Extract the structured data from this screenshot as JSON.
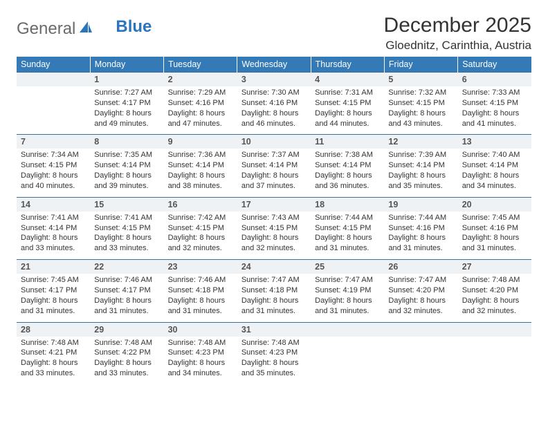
{
  "logo": {
    "part1": "General",
    "part2": "Blue"
  },
  "header": {
    "month_title": "December 2025",
    "location": "Gloednitz, Carinthia, Austria"
  },
  "style": {
    "header_bg": "#337ab7",
    "header_text": "#ffffff",
    "daynum_bg": "#eef2f5",
    "daynum_border_top": "#3a6fa0",
    "body_text": "#333333",
    "logo_gray": "#6a6a6a",
    "logo_blue": "#2a75bb"
  },
  "weekdays": [
    "Sunday",
    "Monday",
    "Tuesday",
    "Wednesday",
    "Thursday",
    "Friday",
    "Saturday"
  ],
  "weeks": [
    {
      "nums": [
        "",
        "1",
        "2",
        "3",
        "4",
        "5",
        "6"
      ],
      "data": [
        null,
        {
          "sunrise": "7:27 AM",
          "sunset": "4:17 PM",
          "daylight": "8 hours and 49 minutes."
        },
        {
          "sunrise": "7:29 AM",
          "sunset": "4:16 PM",
          "daylight": "8 hours and 47 minutes."
        },
        {
          "sunrise": "7:30 AM",
          "sunset": "4:16 PM",
          "daylight": "8 hours and 46 minutes."
        },
        {
          "sunrise": "7:31 AM",
          "sunset": "4:15 PM",
          "daylight": "8 hours and 44 minutes."
        },
        {
          "sunrise": "7:32 AM",
          "sunset": "4:15 PM",
          "daylight": "8 hours and 43 minutes."
        },
        {
          "sunrise": "7:33 AM",
          "sunset": "4:15 PM",
          "daylight": "8 hours and 41 minutes."
        }
      ]
    },
    {
      "nums": [
        "7",
        "8",
        "9",
        "10",
        "11",
        "12",
        "13"
      ],
      "data": [
        {
          "sunrise": "7:34 AM",
          "sunset": "4:15 PM",
          "daylight": "8 hours and 40 minutes."
        },
        {
          "sunrise": "7:35 AM",
          "sunset": "4:14 PM",
          "daylight": "8 hours and 39 minutes."
        },
        {
          "sunrise": "7:36 AM",
          "sunset": "4:14 PM",
          "daylight": "8 hours and 38 minutes."
        },
        {
          "sunrise": "7:37 AM",
          "sunset": "4:14 PM",
          "daylight": "8 hours and 37 minutes."
        },
        {
          "sunrise": "7:38 AM",
          "sunset": "4:14 PM",
          "daylight": "8 hours and 36 minutes."
        },
        {
          "sunrise": "7:39 AM",
          "sunset": "4:14 PM",
          "daylight": "8 hours and 35 minutes."
        },
        {
          "sunrise": "7:40 AM",
          "sunset": "4:14 PM",
          "daylight": "8 hours and 34 minutes."
        }
      ]
    },
    {
      "nums": [
        "14",
        "15",
        "16",
        "17",
        "18",
        "19",
        "20"
      ],
      "data": [
        {
          "sunrise": "7:41 AM",
          "sunset": "4:14 PM",
          "daylight": "8 hours and 33 minutes."
        },
        {
          "sunrise": "7:41 AM",
          "sunset": "4:15 PM",
          "daylight": "8 hours and 33 minutes."
        },
        {
          "sunrise": "7:42 AM",
          "sunset": "4:15 PM",
          "daylight": "8 hours and 32 minutes."
        },
        {
          "sunrise": "7:43 AM",
          "sunset": "4:15 PM",
          "daylight": "8 hours and 32 minutes."
        },
        {
          "sunrise": "7:44 AM",
          "sunset": "4:15 PM",
          "daylight": "8 hours and 31 minutes."
        },
        {
          "sunrise": "7:44 AM",
          "sunset": "4:16 PM",
          "daylight": "8 hours and 31 minutes."
        },
        {
          "sunrise": "7:45 AM",
          "sunset": "4:16 PM",
          "daylight": "8 hours and 31 minutes."
        }
      ]
    },
    {
      "nums": [
        "21",
        "22",
        "23",
        "24",
        "25",
        "26",
        "27"
      ],
      "data": [
        {
          "sunrise": "7:45 AM",
          "sunset": "4:17 PM",
          "daylight": "8 hours and 31 minutes."
        },
        {
          "sunrise": "7:46 AM",
          "sunset": "4:17 PM",
          "daylight": "8 hours and 31 minutes."
        },
        {
          "sunrise": "7:46 AM",
          "sunset": "4:18 PM",
          "daylight": "8 hours and 31 minutes."
        },
        {
          "sunrise": "7:47 AM",
          "sunset": "4:18 PM",
          "daylight": "8 hours and 31 minutes."
        },
        {
          "sunrise": "7:47 AM",
          "sunset": "4:19 PM",
          "daylight": "8 hours and 31 minutes."
        },
        {
          "sunrise": "7:47 AM",
          "sunset": "4:20 PM",
          "daylight": "8 hours and 32 minutes."
        },
        {
          "sunrise": "7:48 AM",
          "sunset": "4:20 PM",
          "daylight": "8 hours and 32 minutes."
        }
      ]
    },
    {
      "nums": [
        "28",
        "29",
        "30",
        "31",
        "",
        "",
        ""
      ],
      "data": [
        {
          "sunrise": "7:48 AM",
          "sunset": "4:21 PM",
          "daylight": "8 hours and 33 minutes."
        },
        {
          "sunrise": "7:48 AM",
          "sunset": "4:22 PM",
          "daylight": "8 hours and 33 minutes."
        },
        {
          "sunrise": "7:48 AM",
          "sunset": "4:23 PM",
          "daylight": "8 hours and 34 minutes."
        },
        {
          "sunrise": "7:48 AM",
          "sunset": "4:23 PM",
          "daylight": "8 hours and 35 minutes."
        },
        null,
        null,
        null
      ]
    }
  ],
  "labels": {
    "sunrise_prefix": "Sunrise: ",
    "sunset_prefix": "Sunset: ",
    "daylight_prefix": "Daylight: "
  }
}
